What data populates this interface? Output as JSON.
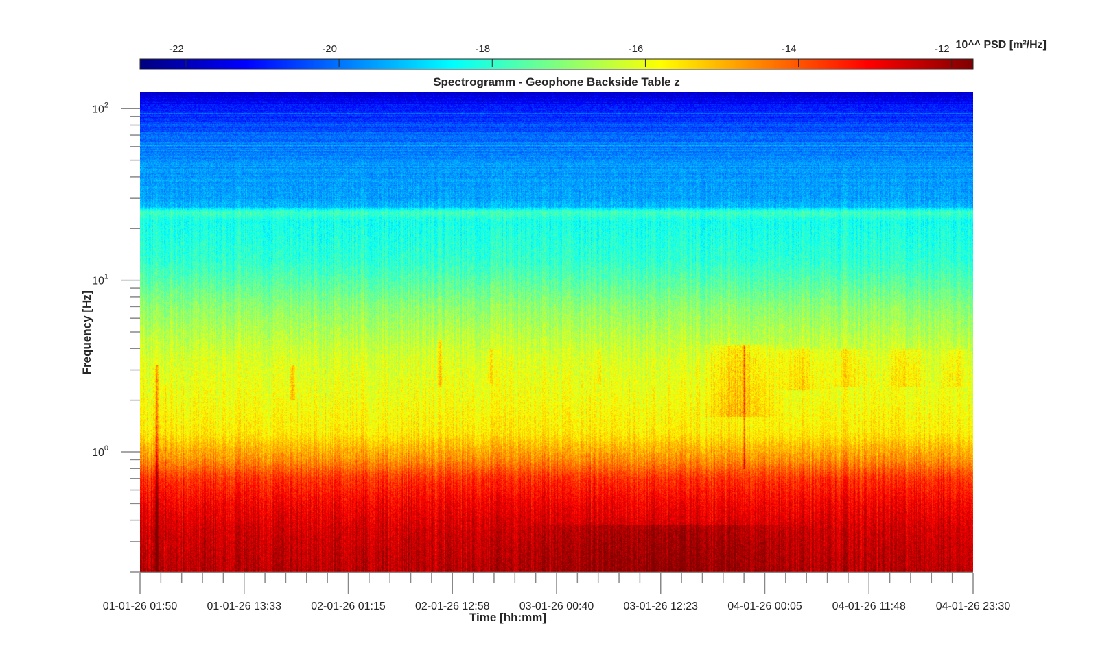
{
  "chart_data": {
    "type": "heatmap",
    "title": "Spectrogramm - Geophone Backside Table z",
    "xlabel": "Time [hh:mm]",
    "ylabel": "Frequency [Hz]",
    "yscale": "log",
    "ylim": [
      0.2,
      125
    ],
    "y_major_ticks": [
      1,
      10,
      100
    ],
    "y_tick_labels": [
      {
        "base": "10",
        "exp": "0"
      },
      {
        "base": "10",
        "exp": "1"
      },
      {
        "base": "10",
        "exp": "2"
      }
    ],
    "x_tick_labels": [
      "01-01-26 01:50",
      "01-01-26 13:33",
      "02-01-26 01:15",
      "02-01-26 12:58",
      "03-01-26 00:40",
      "03-01-26 12:23",
      "04-01-26 00:05",
      "04-01-26 11:48",
      "04-01-26 23:30"
    ],
    "x_minor_per_major": 4,
    "colormap": "jet",
    "colorbar": {
      "label": "10^^ PSD [m²/Hz]",
      "clim": [
        -22.6,
        -11.72
      ],
      "ticks": [
        -22,
        -20,
        -18,
        -16,
        -14,
        -12
      ],
      "placement": "top"
    },
    "psd_profile_log10": [
      [
        125,
        -21.8
      ],
      [
        100,
        -21.0
      ],
      [
        80,
        -20.4
      ],
      [
        60,
        -19.9
      ],
      [
        45,
        -19.6
      ],
      [
        30,
        -19.5
      ],
      [
        27,
        -19.3
      ],
      [
        25,
        -17.8
      ],
      [
        22,
        -18.3
      ],
      [
        18,
        -18.2
      ],
      [
        13,
        -18.0
      ],
      [
        10,
        -17.6
      ],
      [
        7,
        -17.0
      ],
      [
        5,
        -16.6
      ],
      [
        3.5,
        -16.2
      ],
      [
        2,
        -15.9
      ],
      [
        1.3,
        -15.6
      ],
      [
        1.05,
        -15.0
      ],
      [
        0.9,
        -14.6
      ],
      [
        0.7,
        -13.6
      ],
      [
        0.5,
        -13.0
      ],
      [
        0.35,
        -12.6
      ],
      [
        0.2,
        -12.3
      ]
    ]
  }
}
